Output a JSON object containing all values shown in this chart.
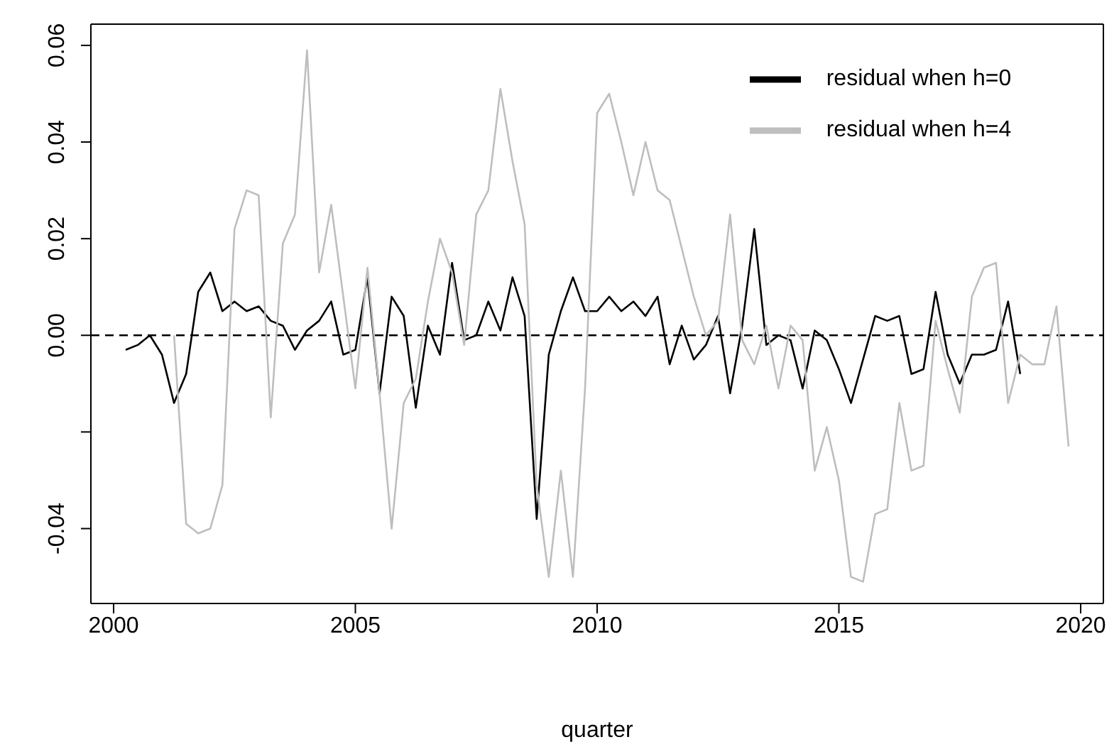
{
  "chart_data": {
    "type": "line",
    "xlabel": "quarter",
    "xlim": [
      1999.53,
      2020.47
    ],
    "xticks": [
      2000,
      2005,
      2010,
      2015,
      2020
    ],
    "ylim": [
      -0.0555,
      0.0644
    ],
    "yticks": [
      {
        "value": -0.04,
        "label": "-0.04"
      },
      {
        "value": -0.02,
        "label": null
      },
      {
        "value": 0,
        "label": "0.00"
      },
      {
        "value": 0.02,
        "label": "0.02"
      },
      {
        "value": 0.04,
        "label": "0.04"
      },
      {
        "value": 0.06,
        "label": "0.06"
      }
    ],
    "ref_lines": [
      {
        "axis": "y",
        "value": 0,
        "color": "#000000",
        "line_style": "dashed"
      }
    ],
    "legend": "top right",
    "grid": false,
    "marker": "none",
    "line_style": "solid",
    "series": [
      {
        "name": "residual when h=0",
        "color": "#000000",
        "x": [
          2000.25,
          2000.5,
          2000.75,
          2001,
          2001.25,
          2001.5,
          2001.75,
          2002,
          2002.25,
          2002.5,
          2002.75,
          2003,
          2003.25,
          2003.5,
          2003.75,
          2004,
          2004.25,
          2004.5,
          2004.75,
          2005,
          2005.25,
          2005.5,
          2005.75,
          2006,
          2006.25,
          2006.5,
          2006.75,
          2007,
          2007.25,
          2007.5,
          2007.75,
          2008,
          2008.25,
          2008.5,
          2008.75,
          2009,
          2009.25,
          2009.5,
          2009.75,
          2010,
          2010.25,
          2010.5,
          2010.75,
          2011,
          2011.25,
          2011.5,
          2011.75,
          2012,
          2012.25,
          2012.5,
          2012.75,
          2013,
          2013.25,
          2013.5,
          2013.75,
          2014,
          2014.25,
          2014.5,
          2014.75,
          2015,
          2015.25,
          2015.5,
          2015.75,
          2016,
          2016.25,
          2016.5,
          2016.75,
          2017,
          2017.25,
          2017.5,
          2017.75,
          2018,
          2018.25,
          2018.5,
          2018.75
        ],
        "values": [
          -0.003,
          -0.002,
          0.0,
          -0.004,
          -0.014,
          -0.008,
          0.009,
          0.013,
          0.005,
          0.007,
          0.005,
          0.006,
          0.003,
          0.002,
          -0.003,
          0.001,
          0.003,
          0.007,
          -0.004,
          -0.003,
          0.012,
          -0.012,
          0.008,
          0.004,
          -0.015,
          0.002,
          -0.004,
          0.015,
          -0.001,
          0.0,
          0.007,
          0.001,
          0.012,
          0.004,
          -0.038,
          -0.004,
          0.005,
          0.012,
          0.005,
          0.005,
          0.008,
          0.005,
          0.007,
          0.004,
          0.008,
          -0.006,
          0.002,
          -0.005,
          -0.002,
          0.004,
          -0.012,
          0.002,
          0.022,
          -0.002,
          0.0,
          -0.001,
          -0.011,
          0.001,
          -0.001,
          -0.007,
          -0.014,
          -0.005,
          0.004,
          0.003,
          0.004,
          -0.008,
          -0.007,
          0.009,
          -0.004,
          -0.01,
          -0.004,
          -0.004,
          -0.003,
          0.007,
          -0.008
        ]
      },
      {
        "name": "residual when h=4",
        "color": "#bebebe",
        "x": [
          2001.25,
          2001.5,
          2001.75,
          2002,
          2002.25,
          2002.5,
          2002.75,
          2003,
          2003.25,
          2003.5,
          2003.75,
          2004,
          2004.25,
          2004.5,
          2004.75,
          2005,
          2005.25,
          2005.5,
          2005.75,
          2006,
          2006.25,
          2006.5,
          2006.75,
          2007,
          2007.25,
          2007.5,
          2007.75,
          2008,
          2008.25,
          2008.5,
          2008.75,
          2009,
          2009.25,
          2009.5,
          2009.75,
          2010,
          2010.25,
          2010.5,
          2010.75,
          2011,
          2011.25,
          2011.5,
          2011.75,
          2012,
          2012.25,
          2012.5,
          2012.75,
          2013,
          2013.25,
          2013.5,
          2013.75,
          2014,
          2014.25,
          2014.5,
          2014.75,
          2015,
          2015.25,
          2015.5,
          2015.75,
          2016,
          2016.25,
          2016.5,
          2016.75,
          2017,
          2017.25,
          2017.5,
          2017.75,
          2018,
          2018.25,
          2018.5,
          2018.75,
          2019,
          2019.25,
          2019.5,
          2019.75
        ],
        "values": [
          0.0,
          -0.039,
          -0.041,
          -0.04,
          -0.031,
          0.022,
          0.03,
          0.029,
          -0.017,
          0.019,
          0.025,
          0.059,
          0.013,
          0.027,
          0.008,
          -0.011,
          0.014,
          -0.012,
          -0.04,
          -0.014,
          -0.009,
          0.007,
          0.02,
          0.013,
          -0.002,
          0.025,
          0.03,
          0.051,
          0.036,
          0.023,
          -0.031,
          -0.05,
          -0.028,
          -0.05,
          -0.011,
          0.046,
          0.05,
          0.04,
          0.029,
          0.04,
          0.03,
          0.028,
          0.018,
          0.008,
          0.0,
          0.003,
          0.025,
          -0.001,
          -0.006,
          0.002,
          -0.011,
          0.002,
          -0.001,
          -0.028,
          -0.019,
          -0.03,
          -0.05,
          -0.051,
          -0.037,
          -0.036,
          -0.014,
          -0.028,
          -0.027,
          0.003,
          -0.007,
          -0.016,
          0.008,
          0.014,
          0.015,
          -0.014,
          -0.004,
          -0.006,
          -0.006,
          0.006,
          -0.023
        ]
      }
    ]
  }
}
